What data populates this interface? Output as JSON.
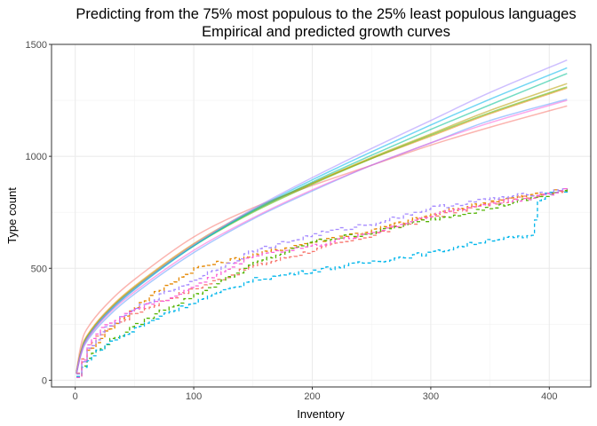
{
  "chart_data": {
    "type": "line",
    "title": "Predicting from the 75% most populous to the 25% least populous languages",
    "subtitle": "Empirical and predicted growth curves",
    "xlabel": "Inventory",
    "ylabel": "Type count",
    "xlim": [
      -20,
      435
    ],
    "ylim": [
      -30,
      1500
    ],
    "x_ticks": [
      0,
      100,
      200,
      300,
      400
    ],
    "y_ticks": [
      0,
      500,
      1000,
      1500
    ],
    "grid": true,
    "legend": "none",
    "predicted_series": [
      {
        "color": "#f8766d",
        "x": [
          1,
          5,
          10,
          25,
          50,
          100,
          150,
          200,
          250,
          300,
          350,
          415
        ],
        "y": [
          40,
          160,
          230,
          330,
          450,
          640,
          770,
          870,
          960,
          1050,
          1130,
          1225
        ]
      },
      {
        "color": "#e58700",
        "x": [
          1,
          5,
          10,
          25,
          50,
          100,
          150,
          200,
          250,
          300,
          350,
          415
        ],
        "y": [
          35,
          135,
          200,
          300,
          420,
          610,
          760,
          880,
          990,
          1090,
          1190,
          1305
        ]
      },
      {
        "color": "#b79f00",
        "x": [
          1,
          5,
          10,
          25,
          50,
          100,
          150,
          200,
          250,
          300,
          350,
          415
        ],
        "y": [
          33,
          130,
          195,
          295,
          415,
          605,
          755,
          880,
          995,
          1100,
          1205,
          1325
        ]
      },
      {
        "color": "#53b400",
        "x": [
          1,
          5,
          10,
          25,
          50,
          100,
          150,
          200,
          250,
          300,
          350,
          415
        ],
        "y": [
          32,
          128,
          192,
          292,
          412,
          600,
          750,
          875,
          990,
          1095,
          1195,
          1310
        ]
      },
      {
        "color": "#00c094",
        "x": [
          1,
          5,
          10,
          25,
          50,
          100,
          150,
          200,
          250,
          300,
          350,
          415
        ],
        "y": [
          31,
          125,
          188,
          288,
          408,
          600,
          755,
          885,
          1005,
          1120,
          1230,
          1370
        ]
      },
      {
        "color": "#00b6eb",
        "x": [
          1,
          5,
          10,
          25,
          50,
          100,
          150,
          200,
          250,
          300,
          350,
          415
        ],
        "y": [
          30,
          122,
          185,
          285,
          405,
          600,
          760,
          895,
          1020,
          1140,
          1255,
          1395
        ]
      },
      {
        "color": "#619cff",
        "x": [
          1,
          5,
          10,
          25,
          50,
          100,
          150,
          200,
          250,
          300,
          350,
          415
        ],
        "y": [
          28,
          115,
          175,
          270,
          385,
          570,
          720,
          845,
          960,
          1060,
          1160,
          1255
        ]
      },
      {
        "color": "#a58aff",
        "x": [
          1,
          5,
          10,
          25,
          50,
          100,
          150,
          200,
          250,
          300,
          350,
          415
        ],
        "y": [
          30,
          124,
          188,
          290,
          410,
          605,
          765,
          905,
          1035,
          1160,
          1285,
          1430
        ]
      },
      {
        "color": "#fb61d7",
        "x": [
          1,
          5,
          10,
          25,
          50,
          100,
          150,
          200,
          250,
          300,
          350,
          415
        ],
        "y": [
          29,
          120,
          182,
          280,
          395,
          580,
          725,
          850,
          960,
          1060,
          1150,
          1250
        ]
      }
    ],
    "empirical_series": [
      {
        "color": "#f8766d",
        "x": [
          1,
          10,
          25,
          50,
          75,
          100,
          150,
          200,
          250,
          300,
          350,
          400,
          415
        ],
        "y": [
          25,
          150,
          230,
          300,
          360,
          410,
          510,
          580,
          650,
          730,
          790,
          840,
          850
        ]
      },
      {
        "color": "#e58700",
        "x": [
          1,
          10,
          25,
          50,
          75,
          100,
          150,
          200,
          250,
          300,
          350,
          400,
          415
        ],
        "y": [
          20,
          130,
          215,
          330,
          420,
          500,
          560,
          620,
          670,
          740,
          800,
          840,
          850
        ]
      },
      {
        "color": "#53b400",
        "x": [
          1,
          10,
          25,
          50,
          75,
          100,
          150,
          200,
          250,
          300,
          350,
          400,
          415
        ],
        "y": [
          18,
          100,
          165,
          245,
          320,
          380,
          520,
          620,
          660,
          720,
          770,
          830,
          855
        ]
      },
      {
        "color": "#00b6eb",
        "x": [
          1,
          10,
          25,
          50,
          75,
          100,
          150,
          200,
          250,
          300,
          350,
          385,
          390,
          400,
          415
        ],
        "y": [
          15,
          95,
          160,
          230,
          300,
          350,
          450,
          490,
          530,
          570,
          630,
          640,
          800,
          845,
          850
        ]
      },
      {
        "color": "#a58aff",
        "x": [
          1,
          10,
          25,
          50,
          75,
          100,
          150,
          200,
          250,
          300,
          350,
          400,
          415
        ],
        "y": [
          22,
          140,
          230,
          320,
          390,
          450,
          580,
          650,
          700,
          770,
          810,
          840,
          858
        ]
      },
      {
        "color": "#fb61d7",
        "x": [
          1,
          10,
          25,
          50,
          75,
          100,
          150,
          200,
          250,
          300,
          350,
          400,
          415
        ],
        "y": [
          20,
          160,
          250,
          320,
          360,
          420,
          560,
          600,
          660,
          740,
          790,
          830,
          860
        ]
      }
    ]
  }
}
